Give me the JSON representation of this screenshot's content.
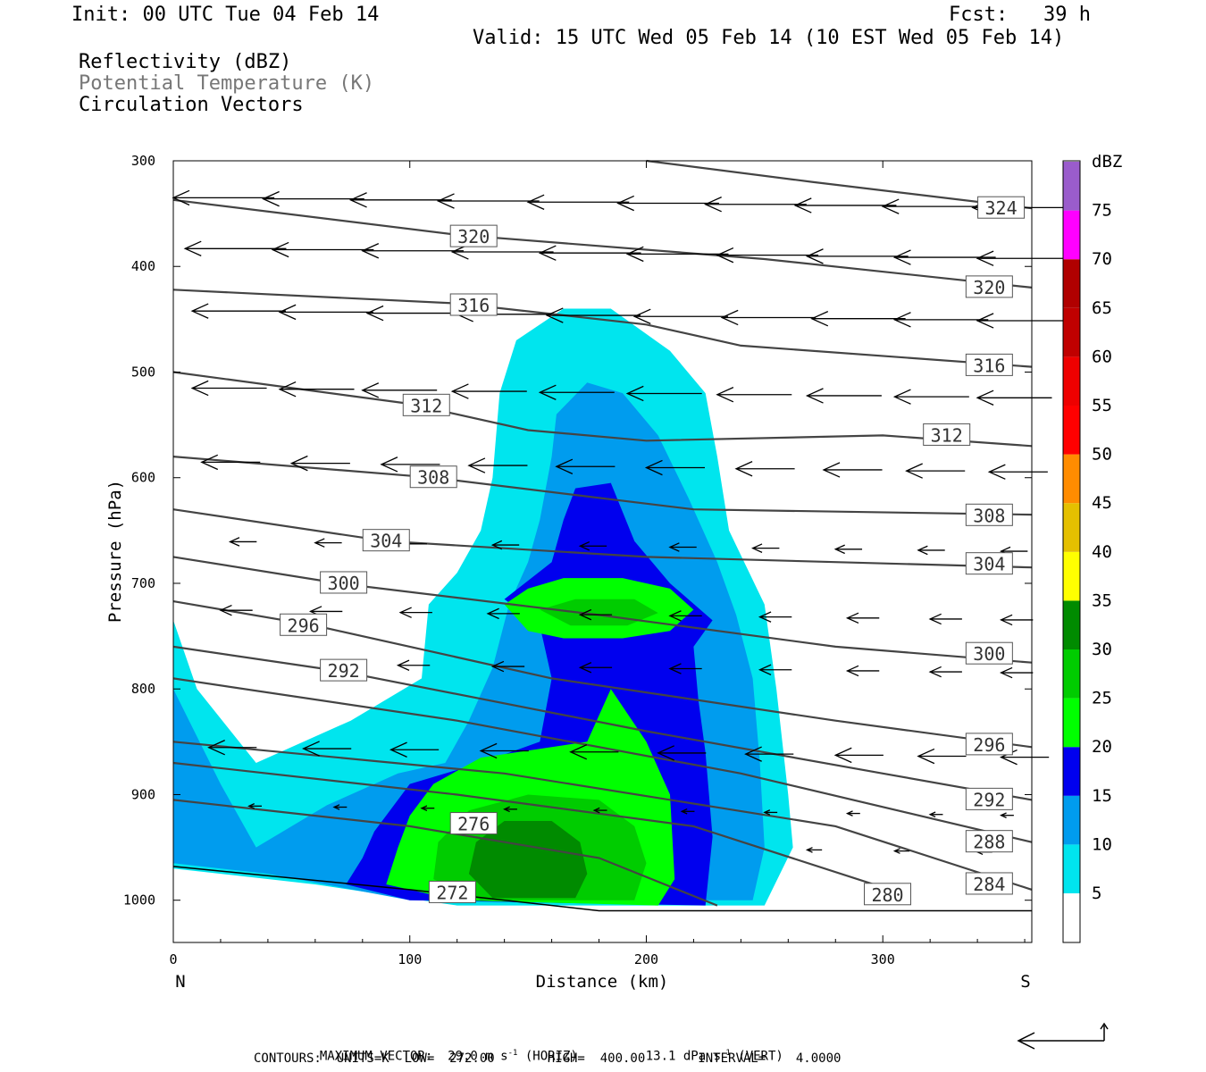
{
  "header": {
    "init": "Init: 00 UTC Tue 04 Feb 14",
    "fcst": "Fcst:   39 h",
    "valid": "Valid: 15 UTC Wed 05 Feb 14 (10 EST Wed 05 Feb 14)"
  },
  "legend_titles": {
    "reflectivity": "Reflectivity (dBZ)",
    "theta": "Potential Temperature (K)",
    "vectors": "Circulation Vectors"
  },
  "footer": {
    "max_vector_prefix": "MAXIMUM VECTOR:  29.0 m s",
    "max_vector_mid": " (HORIZ)         13.1 dPa s",
    "max_vector_suffix": " (VERT)",
    "exponent": "-1",
    "contours": "CONTOURS:  UNITS=K  LOW=  272.00       HIGH=  400.00       INTERVAL=    4.0000"
  },
  "colors": {
    "dbz_5": "#00e5ee",
    "dbz_10": "#009cee",
    "dbz_15": "#0000ee",
    "dbz_20": "#00ff00",
    "dbz_25": "#00cc00",
    "dbz_30": "#008b00",
    "dbz_35": "#ffff00",
    "dbz_40": "#e5c000",
    "dbz_45": "#ff8c00",
    "dbz_50": "#ff0000",
    "dbz_55": "#ee0000",
    "dbz_60": "#c00000",
    "dbz_65": "#b00000",
    "dbz_70": "#ff00ff",
    "dbz_75": "#9a5ccc"
  },
  "chart_data": {
    "type": "heatmap",
    "title": "",
    "xlabel": "Distance (km)",
    "ylabel": "Pressure (hPa)",
    "xlim": [
      0,
      363
    ],
    "ylim": [
      1040,
      300
    ],
    "y_scale": "linear-pressure",
    "x_ticks": [
      0,
      100,
      200,
      300
    ],
    "y_ticks": [
      300,
      400,
      500,
      600,
      700,
      800,
      900,
      1000
    ],
    "x_end_labels": [
      "N",
      "S"
    ],
    "colorbar": {
      "unit": "dBZ",
      "levels": [
        5,
        10,
        15,
        20,
        25,
        30,
        35,
        40,
        45,
        50,
        55,
        60,
        65,
        70,
        75
      ]
    },
    "reflectivity_regions": [
      {
        "dbz": 5,
        "points": [
          [
            0,
            735
          ],
          [
            10,
            800
          ],
          [
            35,
            870
          ],
          [
            75,
            830
          ],
          [
            105,
            790
          ],
          [
            108,
            720
          ],
          [
            120,
            690
          ],
          [
            130,
            650
          ],
          [
            135,
            600
          ],
          [
            138,
            520
          ],
          [
            145,
            470
          ],
          [
            165,
            440
          ],
          [
            185,
            440
          ],
          [
            210,
            480
          ],
          [
            225,
            520
          ],
          [
            230,
            580
          ],
          [
            235,
            650
          ],
          [
            250,
            720
          ],
          [
            255,
            800
          ],
          [
            260,
            900
          ],
          [
            262,
            950
          ],
          [
            250,
            1005
          ],
          [
            120,
            1005
          ],
          [
            60,
            985
          ],
          [
            0,
            970
          ]
        ]
      },
      {
        "dbz": 10,
        "points": [
          [
            0,
            800
          ],
          [
            20,
            890
          ],
          [
            35,
            950
          ],
          [
            65,
            910
          ],
          [
            95,
            880
          ],
          [
            115,
            870
          ],
          [
            125,
            830
          ],
          [
            135,
            780
          ],
          [
            142,
            720
          ],
          [
            150,
            680
          ],
          [
            155,
            640
          ],
          [
            160,
            580
          ],
          [
            162,
            540
          ],
          [
            175,
            510
          ],
          [
            190,
            520
          ],
          [
            205,
            560
          ],
          [
            218,
            620
          ],
          [
            230,
            680
          ],
          [
            238,
            730
          ],
          [
            245,
            790
          ],
          [
            248,
            870
          ],
          [
            250,
            950
          ],
          [
            245,
            1000
          ],
          [
            100,
            1000
          ],
          [
            40,
            975
          ],
          [
            0,
            965
          ]
        ]
      },
      {
        "dbz": 15,
        "points": [
          [
            73,
            985
          ],
          [
            80,
            960
          ],
          [
            85,
            935
          ],
          [
            100,
            890
          ],
          [
            130,
            870
          ],
          [
            155,
            850
          ],
          [
            160,
            790
          ],
          [
            155,
            740
          ],
          [
            140,
            715
          ],
          [
            160,
            680
          ],
          [
            165,
            640
          ],
          [
            170,
            610
          ],
          [
            185,
            605
          ],
          [
            195,
            660
          ],
          [
            210,
            700
          ],
          [
            228,
            735
          ],
          [
            220,
            760
          ],
          [
            222,
            810
          ],
          [
            225,
            860
          ],
          [
            228,
            940
          ],
          [
            225,
            1005
          ],
          [
            100,
            1000
          ]
        ]
      },
      {
        "dbz": 20,
        "points": [
          [
            90,
            985
          ],
          [
            95,
            950
          ],
          [
            100,
            920
          ],
          [
            110,
            890
          ],
          [
            130,
            865
          ],
          [
            175,
            850
          ],
          [
            185,
            800
          ],
          [
            200,
            850
          ],
          [
            210,
            900
          ],
          [
            212,
            980
          ],
          [
            205,
            1005
          ],
          [
            120,
            1000
          ]
        ]
      },
      {
        "dbz": 20,
        "points": [
          [
            140,
            720
          ],
          [
            150,
            705
          ],
          [
            165,
            695
          ],
          [
            190,
            695
          ],
          [
            210,
            705
          ],
          [
            220,
            725
          ],
          [
            210,
            745
          ],
          [
            190,
            752
          ],
          [
            165,
            752
          ],
          [
            150,
            745
          ]
        ]
      },
      {
        "dbz": 25,
        "points": [
          [
            110,
            980
          ],
          [
            112,
            945
          ],
          [
            125,
            915
          ],
          [
            150,
            900
          ],
          [
            180,
            905
          ],
          [
            195,
            930
          ],
          [
            200,
            965
          ],
          [
            195,
            1000
          ],
          [
            130,
            1000
          ]
        ]
      },
      {
        "dbz": 25,
        "points": [
          [
            155,
            725
          ],
          [
            170,
            715
          ],
          [
            195,
            715
          ],
          [
            205,
            728
          ],
          [
            192,
            740
          ],
          [
            168,
            740
          ]
        ]
      },
      {
        "dbz": 30,
        "points": [
          [
            125,
            975
          ],
          [
            128,
            945
          ],
          [
            140,
            925
          ],
          [
            160,
            925
          ],
          [
            172,
            945
          ],
          [
            175,
            975
          ],
          [
            170,
            998
          ],
          [
            135,
            998
          ]
        ]
      }
    ],
    "ground_line": [
      [
        0,
        968
      ],
      [
        100,
        990
      ],
      [
        180,
        1010
      ],
      [
        363,
        1010
      ]
    ],
    "theta_contours": [
      {
        "label": "324",
        "points": [
          [
            200,
            300
          ],
          [
            270,
            320
          ],
          [
            363,
            345
          ]
        ],
        "label_at": [
          350,
          345
        ]
      },
      {
        "label": "320",
        "points": [
          [
            0,
            337
          ],
          [
            120,
            370
          ],
          [
            250,
            393
          ],
          [
            363,
            420
          ]
        ],
        "label_at": [
          127,
          372
        ]
      },
      {
        "label": "320",
        "points": [],
        "label_at": [
          345,
          420
        ]
      },
      {
        "label": "316",
        "points": [
          [
            0,
            422
          ],
          [
            120,
            435
          ],
          [
            200,
            455
          ],
          [
            240,
            475
          ],
          [
            363,
            495
          ]
        ],
        "label_at": [
          127,
          437
        ]
      },
      {
        "label": "316",
        "points": [],
        "label_at": [
          345,
          494
        ]
      },
      {
        "label": "312",
        "points": [
          [
            0,
            500
          ],
          [
            100,
            530
          ],
          [
            150,
            555
          ],
          [
            200,
            565
          ],
          [
            300,
            560
          ],
          [
            363,
            570
          ]
        ],
        "label_at": [
          107,
          532
        ]
      },
      {
        "label": "312",
        "points": [],
        "label_at": [
          327,
          560
        ]
      },
      {
        "label": "308",
        "points": [
          [
            0,
            580
          ],
          [
            110,
            600
          ],
          [
            220,
            630
          ],
          [
            363,
            635
          ]
        ],
        "label_at": [
          110,
          600
        ]
      },
      {
        "label": "308",
        "points": [],
        "label_at": [
          345,
          636
        ]
      },
      {
        "label": "304",
        "points": [
          [
            0,
            630
          ],
          [
            90,
            660
          ],
          [
            200,
            675
          ],
          [
            363,
            685
          ]
        ],
        "label_at": [
          90,
          660
        ]
      },
      {
        "label": "304",
        "points": [],
        "label_at": [
          345,
          682
        ]
      },
      {
        "label": "300",
        "points": [
          [
            0,
            675
          ],
          [
            70,
            700
          ],
          [
            180,
            730
          ],
          [
            280,
            760
          ],
          [
            363,
            775
          ]
        ],
        "label_at": [
          72,
          700
        ]
      },
      {
        "label": "300",
        "points": [],
        "label_at": [
          345,
          767
        ]
      },
      {
        "label": "296",
        "points": [
          [
            0,
            717
          ],
          [
            60,
            740
          ],
          [
            160,
            790
          ],
          [
            280,
            830
          ],
          [
            363,
            855
          ]
        ],
        "label_at": [
          55,
          740
        ]
      },
      {
        "label": "296",
        "points": [],
        "label_at": [
          345,
          853
        ]
      },
      {
        "label": "292",
        "points": [
          [
            0,
            760
          ],
          [
            70,
            783
          ],
          [
            200,
            840
          ],
          [
            300,
            880
          ],
          [
            363,
            905
          ]
        ],
        "label_at": [
          72,
          783
        ]
      },
      {
        "label": "292",
        "points": [],
        "label_at": [
          345,
          905
        ]
      },
      {
        "label": "288",
        "points": [
          [
            0,
            790
          ],
          [
            120,
            830
          ],
          [
            240,
            880
          ],
          [
            363,
            945
          ]
        ],
        "label_at": [
          345,
          945
        ]
      },
      {
        "label": "284",
        "points": [
          [
            0,
            850
          ],
          [
            140,
            880
          ],
          [
            280,
            930
          ],
          [
            363,
            990
          ]
        ],
        "label_at": [
          345,
          985
        ]
      },
      {
        "label": "280",
        "points": [
          [
            0,
            870
          ],
          [
            120,
            900
          ],
          [
            220,
            930
          ],
          [
            310,
            995
          ]
        ],
        "label_at": [
          302,
          995
        ]
      },
      {
        "label": "276",
        "points": [
          [
            0,
            905
          ],
          [
            100,
            930
          ],
          [
            180,
            960
          ],
          [
            230,
            1005
          ]
        ],
        "label_at": [
          127,
          928
        ]
      },
      {
        "label": "272",
        "points": [
          [
            110,
            985
          ],
          [
            125,
            995
          ]
        ],
        "label_at": [
          118,
          993
        ]
      }
    ],
    "max_vector": {
      "horiz_m_s": 29.0,
      "vert_dPa_s": 13.1
    }
  }
}
